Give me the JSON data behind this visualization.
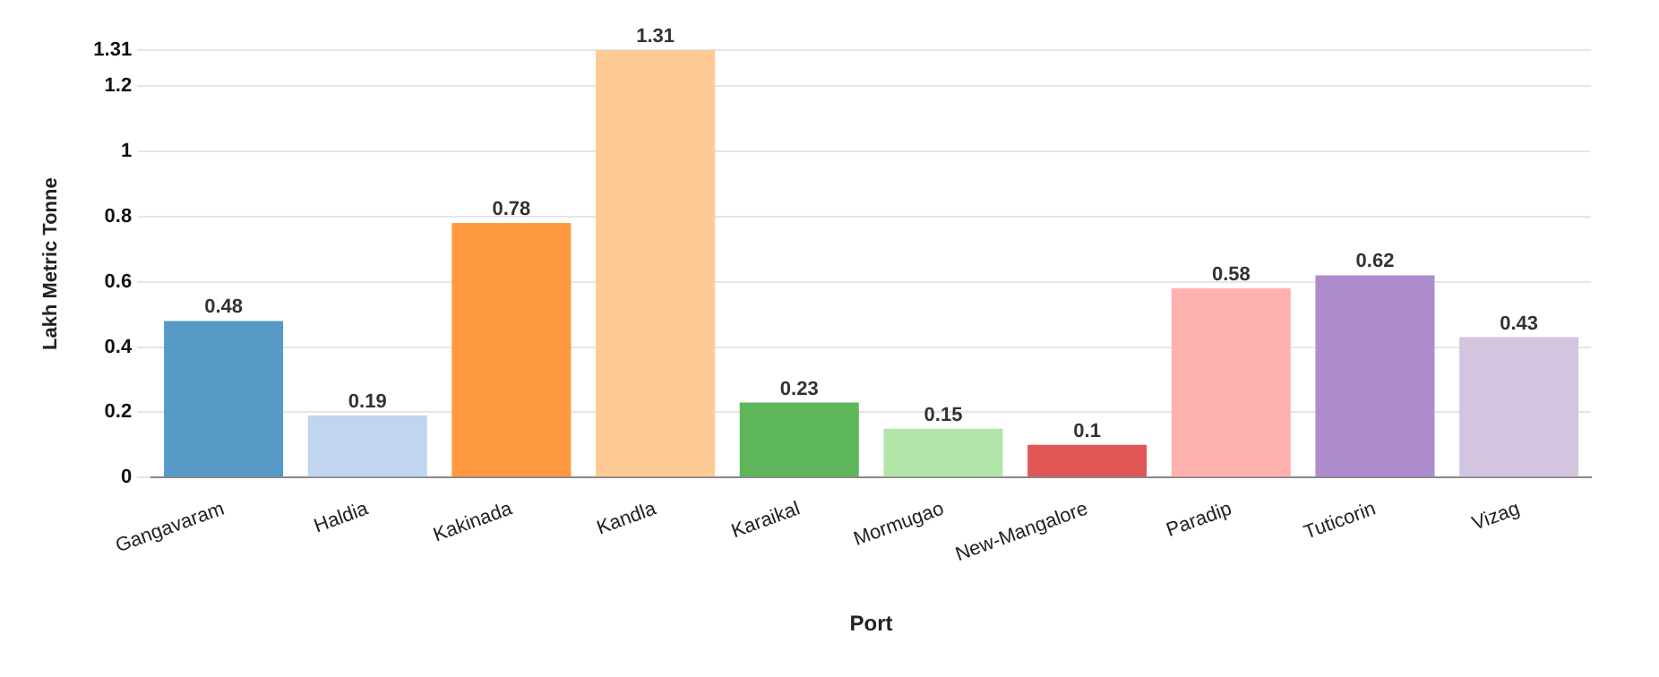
{
  "chart_data": {
    "type": "bar",
    "xlabel": "Port",
    "ylabel": "Lakh Metric Tonne",
    "categories": [
      "Gangavaram",
      "Haldia",
      "Kakinada",
      "Kandla",
      "Karaikal",
      "Mormugao",
      "New-Mangalore",
      "Paradip",
      "Tuticorin",
      "Vizag"
    ],
    "values": [
      0.48,
      0.19,
      0.78,
      1.31,
      0.23,
      0.15,
      0.1,
      0.58,
      0.62,
      0.43
    ],
    "colors": [
      "#5799c7",
      "#c0d5ef",
      "#ff9a42",
      "#ffcb95",
      "#5db75a",
      "#b1e6a8",
      "#e05656",
      "#ffb1b0",
      "#ad8ccd",
      "#d3c4e0"
    ],
    "ylim": [
      0,
      1.31
    ],
    "yticks": [
      0,
      0.2,
      0.4,
      0.6,
      0.8,
      1,
      1.2,
      1.31
    ],
    "grid": "y",
    "data_labels": true
  }
}
